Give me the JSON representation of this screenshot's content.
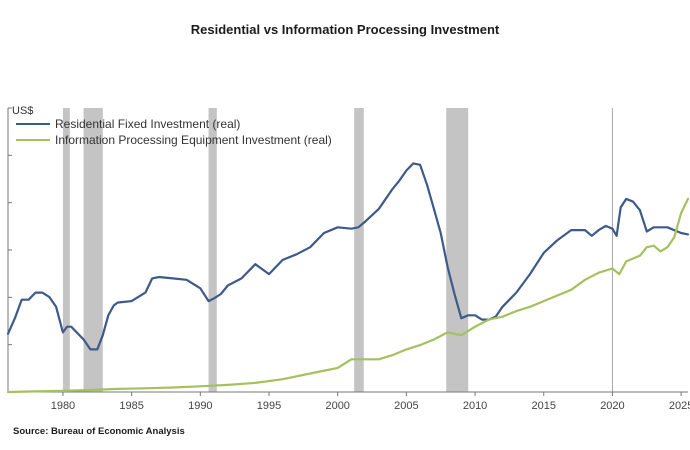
{
  "title": "Residential vs Information Processing Investment",
  "source": "Source:  Bureau of Economic Analysis",
  "chart_data": {
    "type": "line",
    "title": "Residential vs Information Processing Investment",
    "y_unit_label": "US$",
    "y_tick_labels_shown": false,
    "x_ticks": [
      1980,
      1985,
      1990,
      1995,
      2000,
      2005,
      2010,
      2015,
      2020,
      2025
    ],
    "x_tick_labels": [
      "1980",
      "1985",
      "1990",
      "1995",
      "2000",
      "2005",
      "2010",
      "2015",
      "2020",
      "2025"
    ],
    "xlim": [
      1976.0,
      2025.5
    ],
    "ylim": [
      0,
      100
    ],
    "grid": false,
    "legend_position": "top-left",
    "reference_line_x": 2020.0,
    "recessions": [
      [
        1980.0,
        1980.5
      ],
      [
        1981.5,
        1982.9
      ],
      [
        1990.6,
        1991.2
      ],
      [
        2001.2,
        2001.9
      ],
      [
        2007.9,
        2009.5
      ]
    ],
    "series": [
      {
        "name": "Residential Fixed Investment (real)",
        "color": "#3d5a8a",
        "x": [
          1976.0,
          1976.5,
          1977.0,
          1977.5,
          1978.0,
          1978.5,
          1979.0,
          1979.5,
          1980.0,
          1980.3,
          1980.6,
          1981.0,
          1981.5,
          1982.0,
          1982.5,
          1982.9,
          1983.3,
          1983.7,
          1984.0,
          1985.0,
          1986.0,
          1986.5,
          1987.0,
          1988.0,
          1989.0,
          1990.0,
          1990.6,
          1991.0,
          1991.5,
          1992.0,
          1993.0,
          1994.0,
          1995.0,
          1996.0,
          1997.0,
          1998.0,
          1999.0,
          2000.0,
          2001.0,
          2001.5,
          2002.0,
          2003.0,
          2004.0,
          2004.5,
          2005.0,
          2005.5,
          2006.0,
          2006.5,
          2007.0,
          2007.5,
          2008.0,
          2008.5,
          2009.0,
          2009.5,
          2010.0,
          2010.5,
          2011.0,
          2011.5,
          2012.0,
          2013.0,
          2014.0,
          2015.0,
          2016.0,
          2017.0,
          2018.0,
          2018.5,
          2019.0,
          2019.5,
          2020.0,
          2020.3,
          2020.6,
          2021.0,
          2021.5,
          2022.0,
          2022.5,
          2023.0,
          2024.0,
          2025.0,
          2025.5
        ],
        "values": [
          20.5,
          26,
          32.5,
          32.5,
          35,
          35,
          33.5,
          30,
          21,
          23,
          23,
          21,
          18.5,
          15,
          15,
          20,
          27,
          30.5,
          31.5,
          32,
          35,
          40,
          40.5,
          40,
          39.5,
          36.5,
          32,
          33,
          34.5,
          37.5,
          40,
          45,
          41.5,
          46.5,
          48.5,
          51,
          56,
          58,
          57.5,
          58,
          60,
          64.5,
          71.5,
          74.5,
          78,
          80.5,
          80,
          73,
          64.5,
          56,
          44,
          34.5,
          26,
          27,
          27,
          25.5,
          25.5,
          26.5,
          30,
          35,
          41.5,
          49,
          53.5,
          57,
          57,
          55,
          57,
          58.5,
          57.5,
          55,
          65,
          68,
          67,
          64,
          56.5,
          58,
          58,
          56,
          55.5
        ]
      },
      {
        "name": "Information Processing Equipment Investment (real)",
        "color": "#a4c15e",
        "x": [
          1976.0,
          1978.0,
          1980.0,
          1982.0,
          1984.0,
          1986.0,
          1988.0,
          1990.0,
          1992.0,
          1994.0,
          1996.0,
          1998.0,
          2000.0,
          2001.0,
          2002.0,
          2003.0,
          2004.0,
          2005.0,
          2006.0,
          2007.0,
          2008.0,
          2009.0,
          2010.0,
          2011.0,
          2012.0,
          2013.0,
          2014.0,
          2015.0,
          2016.0,
          2017.0,
          2018.0,
          2019.0,
          2020.0,
          2020.5,
          2021.0,
          2022.0,
          2022.5,
          2023.0,
          2023.5,
          2024.0,
          2024.5,
          2025.0,
          2025.5
        ],
        "values": [
          0,
          0.2,
          0.4,
          0.7,
          1.1,
          1.3,
          1.6,
          2.0,
          2.5,
          3.2,
          4.5,
          6.5,
          8.5,
          11.5,
          11.5,
          11.5,
          13,
          15,
          16.5,
          18.5,
          21,
          20,
          23,
          25.5,
          26.5,
          28.5,
          30,
          32,
          34,
          36,
          39.5,
          42,
          43.5,
          41.5,
          46,
          48,
          51,
          51.5,
          49.5,
          51,
          54.5,
          63,
          68
        ]
      }
    ]
  }
}
